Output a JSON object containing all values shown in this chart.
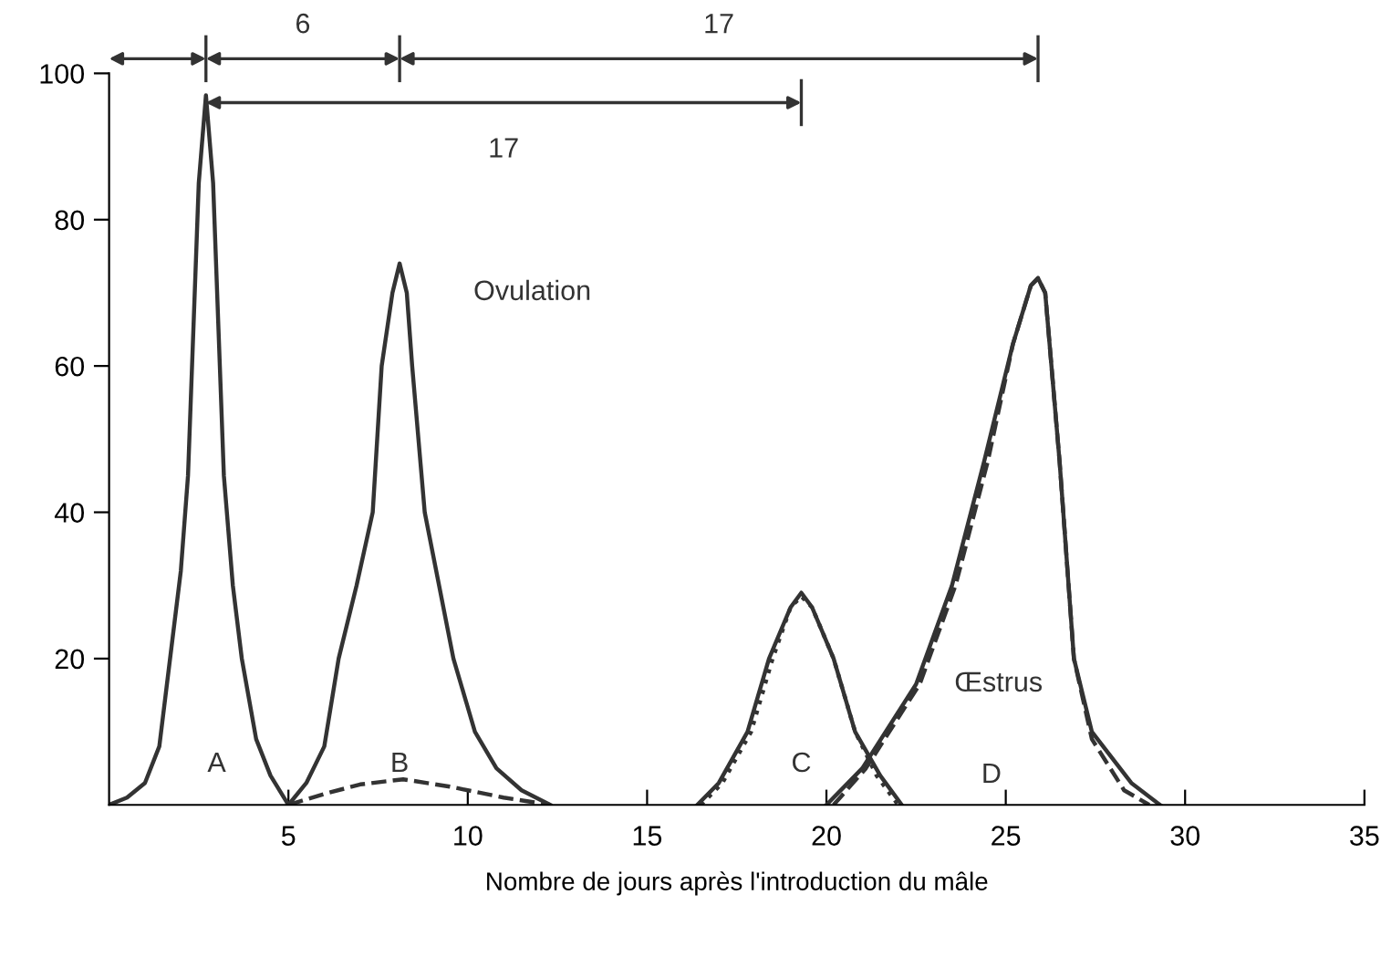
{
  "chart_data": {
    "type": "line",
    "xlabel": "Nombre de jours après l'introduction du mâle",
    "xlim": [
      0,
      35
    ],
    "ylim": [
      0,
      100
    ],
    "xticks": [
      5,
      10,
      15,
      20,
      25,
      30,
      35
    ],
    "yticks": [
      20,
      40,
      60,
      80,
      100
    ],
    "grid": false,
    "legend": false,
    "marker": "none",
    "series": [
      {
        "color": "#333333",
        "line_style": "solid",
        "x": [
          0,
          0.5,
          1,
          1.4,
          1.7,
          2.0,
          2.2,
          2.35,
          2.5,
          2.7,
          2.9,
          3.05,
          3.2,
          3.45,
          3.7,
          4.1,
          4.5,
          5
        ],
        "values": [
          0,
          1,
          3,
          8,
          20,
          32,
          45,
          65,
          85,
          97,
          85,
          65,
          45,
          30,
          20,
          9,
          4,
          0
        ]
      },
      {
        "color": "#333333",
        "line_style": "solid",
        "x": [
          5,
          5.5,
          6,
          6.4,
          6.9,
          7.35,
          7.6,
          7.9,
          8.1,
          8.3,
          8.45,
          8.8,
          9.6,
          10.2,
          10.8,
          11.5,
          12.3
        ],
        "values": [
          0,
          3,
          8,
          20,
          30,
          40,
          60,
          70,
          74,
          70,
          60,
          40,
          20,
          10,
          5,
          2,
          0
        ]
      },
      {
        "color": "#333333",
        "line_style": "dashed",
        "x": [
          5,
          6,
          7,
          8.2,
          9.5,
          11,
          12.3
        ],
        "values": [
          0,
          1.5,
          2.8,
          3.5,
          2.5,
          1,
          0
        ]
      },
      {
        "color": "#333333",
        "line_style": "solid",
        "x": [
          16.4,
          17,
          17.8,
          18.4,
          19.0,
          19.3,
          19.6,
          20.2,
          20.8,
          21.5,
          22.1
        ],
        "values": [
          0,
          3,
          10,
          20,
          27,
          29,
          27,
          20,
          10,
          4,
          0
        ]
      },
      {
        "color": "#333333",
        "line_style": "dotted",
        "x": [
          16.5,
          17.1,
          17.9,
          18.5,
          19.0,
          19.3,
          19.6,
          20.2,
          20.8,
          21.4,
          22.0
        ],
        "values": [
          0,
          3,
          10,
          20,
          27,
          28.5,
          27,
          20,
          10,
          4,
          0
        ]
      },
      {
        "color": "#333333",
        "line_style": "solid",
        "x": [
          20.0,
          21,
          22.5,
          23.5,
          24.4,
          25.2,
          25.7,
          25.9,
          26.1,
          26.5,
          26.9,
          27.4,
          28.5,
          29.3
        ],
        "values": [
          0,
          5,
          16.5,
          30,
          47,
          63,
          71,
          72,
          70,
          47,
          20,
          10,
          3,
          0
        ]
      },
      {
        "color": "#333333",
        "line_style": "dashed",
        "x": [
          20.2,
          21.1,
          22.6,
          23.6,
          24.5,
          25.2,
          25.7,
          25.9,
          26.1,
          26.5,
          26.9,
          27.4,
          28.3,
          29.0
        ],
        "values": [
          0,
          5,
          16.5,
          30,
          47,
          63,
          71,
          72,
          70,
          47,
          20,
          9,
          2,
          0
        ]
      }
    ],
    "annotations": [
      "A",
      "B",
      "C",
      "D",
      "Ovulation",
      "Œstrus",
      "6",
      "17",
      "17"
    ]
  }
}
